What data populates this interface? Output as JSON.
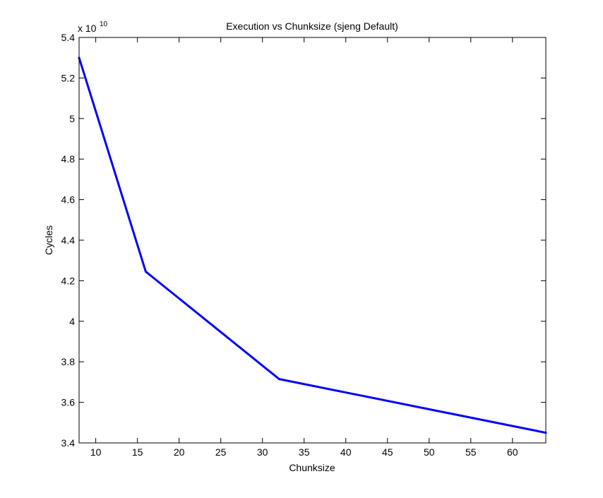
{
  "chart_data": {
    "type": "line",
    "title": "Execution vs Chunksize (sjeng Default)",
    "xlabel": "Chunksize",
    "ylabel": "Cycles",
    "y_exponent_label": {
      "base": "x 10",
      "exponent": "10"
    },
    "xlim": [
      8,
      64
    ],
    "ylim": [
      3.4,
      5.4
    ],
    "xticks": [
      10,
      15,
      20,
      25,
      30,
      35,
      40,
      45,
      50,
      55,
      60
    ],
    "xtick_labels": [
      "10",
      "15",
      "20",
      "25",
      "30",
      "35",
      "40",
      "45",
      "50",
      "55",
      "60"
    ],
    "yticks": [
      3.4,
      3.6,
      3.8,
      4.0,
      4.2,
      4.4,
      4.6,
      4.8,
      5.0,
      5.2,
      5.4
    ],
    "ytick_labels": [
      "3.4",
      "3.6",
      "3.8",
      "4",
      "4.2",
      "4.4",
      "4.6",
      "4.8",
      "5",
      "5.2",
      "5.4"
    ],
    "grid": false,
    "series": [
      {
        "color": "#0000ff",
        "x": [
          8,
          16,
          32,
          64
        ],
        "y": [
          5.3,
          4.245,
          3.715,
          3.45
        ]
      }
    ]
  }
}
